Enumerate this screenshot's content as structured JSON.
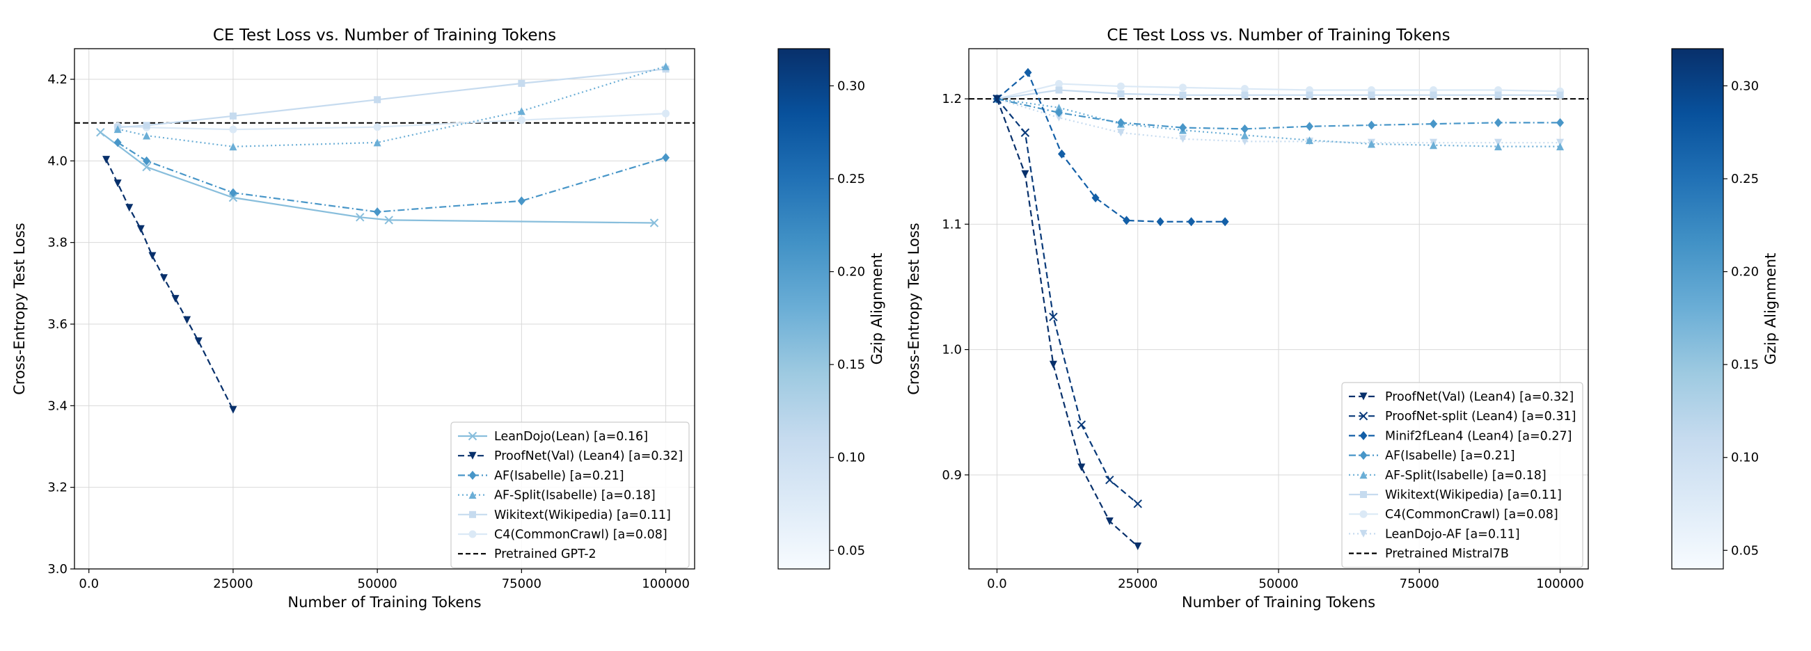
{
  "colorbar": {
    "label": "Gzip Alignment",
    "min": 0.04,
    "max": 0.32,
    "ticks": [
      "0.05",
      "0.10",
      "0.15",
      "0.20",
      "0.25",
      "0.30"
    ],
    "colors": [
      "#f7fbff",
      "#deebf7",
      "#c6dbef",
      "#9ecae1",
      "#6baed6",
      "#4292c6",
      "#2171b5",
      "#08519c",
      "#08306b"
    ]
  },
  "chart_data": [
    {
      "type": "line",
      "title": "CE Test Loss vs. Number of Training Tokens",
      "xlabel": "Number of Training Tokens",
      "ylabel": "Cross-Entropy Test Loss",
      "xlim": [
        -2500,
        105000
      ],
      "ylim": [
        3.0,
        4.275
      ],
      "xticks": [
        0,
        25000,
        50000,
        75000,
        100000
      ],
      "yticks": [
        3.0,
        3.2,
        3.4,
        3.6,
        3.8,
        4.0,
        4.2
      ],
      "grid": true,
      "legend_position": "lower right",
      "baseline": {
        "name": "Pretrained GPT-2",
        "value": 4.093,
        "color": "#000000",
        "dash": "dashed"
      },
      "series": [
        {
          "name": "LeanDojo(Lean) [a=0.16]",
          "alignment": 0.16,
          "marker": "x",
          "dash": "solid",
          "x": [
            2000,
            10000,
            25000,
            47000,
            52000,
            98000
          ],
          "y": [
            4.07,
            3.985,
            3.91,
            3.862,
            3.855,
            3.848
          ]
        },
        {
          "name": "ProofNet(Val) (Lean4) [a=0.32]",
          "alignment": 0.32,
          "marker": "v",
          "dash": "dashed",
          "x": [
            3000,
            5000,
            7000,
            9000,
            11000,
            13000,
            15000,
            17000,
            19000,
            25000
          ],
          "y": [
            4.003,
            3.945,
            3.885,
            3.833,
            3.767,
            3.713,
            3.662,
            3.61,
            3.558,
            3.39
          ]
        },
        {
          "name": "AF(Isabelle) [a=0.21]",
          "alignment": 0.21,
          "marker": "D",
          "dash": "dashdot",
          "x": [
            5000,
            10000,
            25000,
            50000,
            75000,
            100000
          ],
          "y": [
            4.045,
            4.0,
            3.922,
            3.875,
            3.902,
            4.008
          ]
        },
        {
          "name": "AF-Split(Isabelle) [a=0.18]",
          "alignment": 0.18,
          "marker": "^",
          "dash": "dotted",
          "x": [
            5000,
            10000,
            25000,
            50000,
            75000,
            100000
          ],
          "y": [
            4.078,
            4.062,
            4.035,
            4.045,
            4.122,
            4.232
          ]
        },
        {
          "name": "Wikitext(Wikipedia) [a=0.11]",
          "alignment": 0.11,
          "marker": "s",
          "dash": "solid",
          "x": [
            5000,
            10000,
            25000,
            50000,
            75000,
            100000
          ],
          "y": [
            4.082,
            4.087,
            4.11,
            4.15,
            4.19,
            4.225
          ]
        },
        {
          "name": "C4(CommonCrawl) [a=0.08]",
          "alignment": 0.08,
          "marker": "o",
          "dash": "solid",
          "x": [
            5000,
            10000,
            25000,
            50000,
            75000,
            100000
          ],
          "y": [
            4.085,
            4.082,
            4.077,
            4.083,
            4.1,
            4.116
          ]
        }
      ]
    },
    {
      "type": "line",
      "title": "CE Test Loss vs. Number of Training Tokens",
      "xlabel": "Number of Training Tokens",
      "ylabel": "Cross-Entropy Test Loss",
      "xlim": [
        -5000,
        105000
      ],
      "ylim": [
        0.825,
        1.24
      ],
      "xticks": [
        0,
        25000,
        50000,
        75000,
        100000
      ],
      "yticks": [
        0.9,
        1.0,
        1.1,
        1.2
      ],
      "grid": true,
      "legend_position": "lower right",
      "baseline": {
        "name": "Pretrained Mistral7B",
        "value": 1.2,
        "color": "#000000",
        "dash": "dashed"
      },
      "series": [
        {
          "name": "ProofNet(Val) (Lean4) [a=0.32]",
          "alignment": 0.32,
          "marker": "v",
          "dash": "dashed",
          "x": [
            0,
            5000,
            10000,
            15000,
            20000,
            25000
          ],
          "y": [
            1.2,
            1.14,
            0.988,
            0.906,
            0.863,
            0.843
          ]
        },
        {
          "name": "ProofNet-split (Lean4) [a=0.31]",
          "alignment": 0.31,
          "marker": "x",
          "dash": "dashed",
          "x": [
            0,
            5000,
            10000,
            15000,
            20000,
            25000
          ],
          "y": [
            1.2,
            1.173,
            1.026,
            0.94,
            0.896,
            0.877
          ]
        },
        {
          "name": "Minif2fLean4 (Lean4) [a=0.27]",
          "alignment": 0.27,
          "marker": "D",
          "dash": "dashed",
          "x": [
            0,
            5500,
            11500,
            17500,
            23000,
            29000,
            34500,
            40500
          ],
          "y": [
            1.2,
            1.221,
            1.156,
            1.121,
            1.103,
            1.102,
            1.102,
            1.102
          ]
        },
        {
          "name": "AF(Isabelle) [a=0.21]",
          "alignment": 0.21,
          "marker": "D",
          "dash": "dashdot",
          "x": [
            0,
            11000,
            22000,
            33000,
            44000,
            55500,
            66500,
            77500,
            89000,
            100000
          ],
          "y": [
            1.2,
            1.189,
            1.181,
            1.177,
            1.176,
            1.178,
            1.179,
            1.18,
            1.181,
            1.181
          ]
        },
        {
          "name": "AF-Split(Isabelle) [a=0.18]",
          "alignment": 0.18,
          "marker": "^",
          "dash": "dotted",
          "x": [
            0,
            11000,
            22000,
            33000,
            44000,
            55500,
            66500,
            77500,
            89000,
            100000
          ],
          "y": [
            1.2,
            1.193,
            1.18,
            1.175,
            1.171,
            1.167,
            1.164,
            1.163,
            1.162,
            1.162
          ]
        },
        {
          "name": "Wikitext(Wikipedia) [a=0.11]",
          "alignment": 0.11,
          "marker": "s",
          "dash": "solid",
          "x": [
            0,
            11000,
            22000,
            33000,
            44000,
            55500,
            66500,
            77500,
            89000,
            100000
          ],
          "y": [
            1.2,
            1.207,
            1.204,
            1.203,
            1.203,
            1.203,
            1.203,
            1.203,
            1.203,
            1.203
          ]
        },
        {
          "name": "C4(CommonCrawl) [a=0.08]",
          "alignment": 0.08,
          "marker": "o",
          "dash": "solid",
          "x": [
            0,
            11000,
            22000,
            33000,
            44000,
            55500,
            66500,
            77500,
            89000,
            100000
          ],
          "y": [
            1.2,
            1.212,
            1.21,
            1.209,
            1.208,
            1.207,
            1.207,
            1.207,
            1.207,
            1.206
          ]
        },
        {
          "name": "LeanDojo-AF [a=0.11]",
          "alignment": 0.11,
          "marker": "v",
          "dash": "dotted",
          "x": [
            0,
            11000,
            22000,
            33000,
            44000,
            55500,
            66500,
            77500,
            89000,
            100000
          ],
          "y": [
            1.2,
            1.185,
            1.173,
            1.168,
            1.166,
            1.166,
            1.165,
            1.165,
            1.165,
            1.165
          ]
        }
      ]
    }
  ]
}
